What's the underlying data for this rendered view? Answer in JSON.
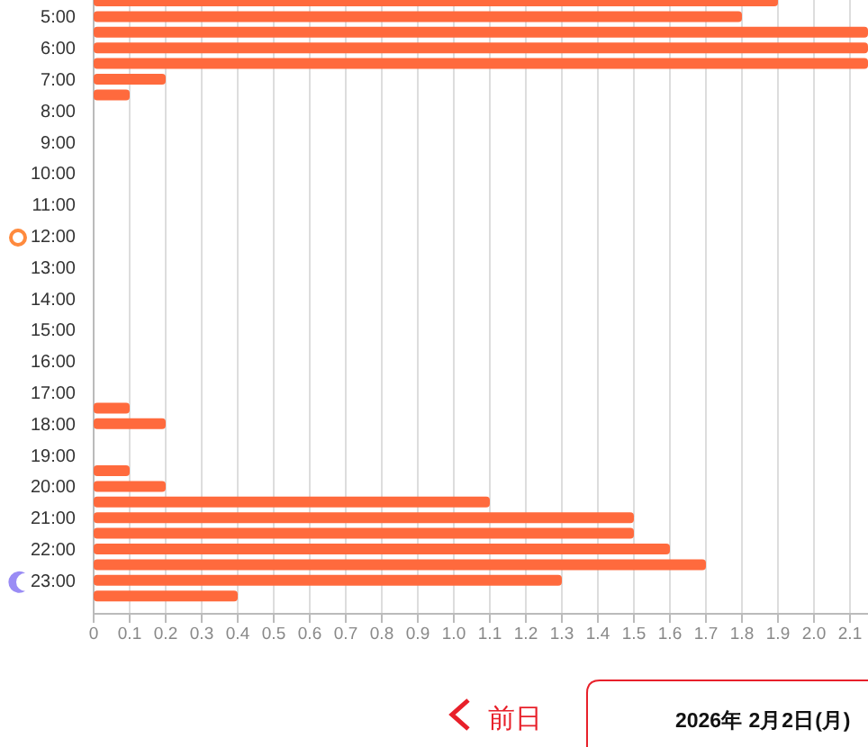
{
  "chart_data": {
    "type": "bar",
    "orientation": "horizontal",
    "categories": [
      null,
      "5:00",
      null,
      "6:00",
      null,
      "7:00",
      null,
      "8:00",
      null,
      "9:00",
      null,
      "10:00",
      null,
      "11:00",
      null,
      "12:00",
      null,
      "13:00",
      null,
      "14:00",
      null,
      "15:00",
      null,
      "16:00",
      null,
      "17:00",
      null,
      "18:00",
      null,
      "19:00",
      null,
      "20:00",
      null,
      "21:00",
      null,
      "22:00",
      null,
      "23:00",
      null
    ],
    "values": [
      1.9,
      1.8,
      2.15,
      2.15,
      2.15,
      0.2,
      0.1,
      0,
      0,
      0,
      0,
      0,
      0,
      0,
      0,
      0,
      0,
      0,
      0,
      0,
      0,
      0,
      0,
      0,
      0,
      0,
      0.1,
      0.2,
      0,
      0,
      0.1,
      0.2,
      1.1,
      1.5,
      1.5,
      1.6,
      1.7,
      1.3,
      0.4
    ],
    "color": "#ff6a3d",
    "xlim": [
      0,
      2.15
    ],
    "xticks": [
      0,
      0.1,
      0.2,
      0.3,
      0.4,
      0.5,
      0.6,
      0.7,
      0.8,
      0.9,
      {
        "value": 1,
        "label": "1.0"
      },
      1.1,
      1.2,
      1.3,
      1.4,
      1.5,
      1.6,
      1.7,
      1.8,
      1.9,
      {
        "value": 2,
        "label": "2.0"
      },
      2.1
    ],
    "grid": "x",
    "annotations": [
      "前日",
      "2026年 2月2日(月)"
    ]
  }
}
